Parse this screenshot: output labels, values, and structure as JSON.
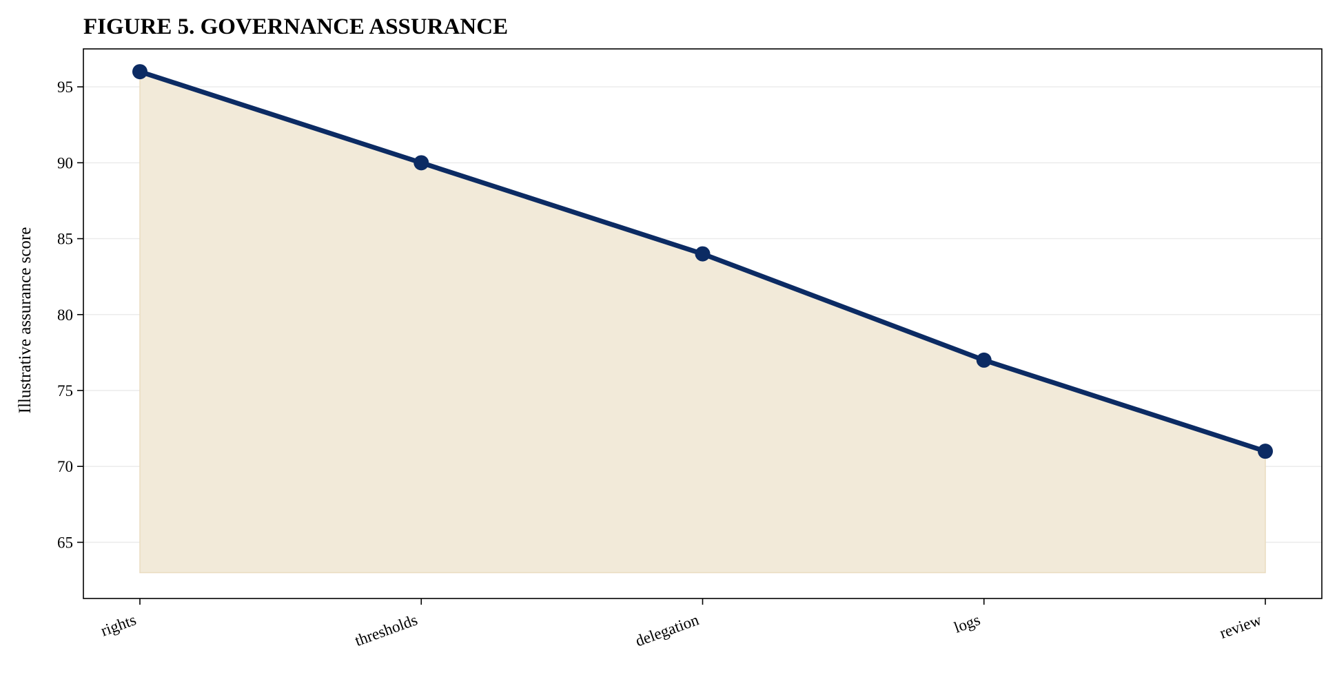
{
  "chart_data": {
    "type": "area",
    "title": "FIGURE 5. GOVERNANCE ASSURANCE",
    "xlabel": "",
    "ylabel": "Illustrative assurance score",
    "categories": [
      "rights",
      "thresholds",
      "delegation",
      "logs",
      "review"
    ],
    "series": [
      {
        "values": [
          96,
          90,
          84,
          77,
          71
        ]
      }
    ],
    "area_baseline": 63,
    "ylim": [
      61.3,
      97.5
    ],
    "yticks": [
      65,
      70,
      75,
      80,
      85,
      90,
      95
    ],
    "xtick_rotation": "slanted",
    "grid": "horizontal",
    "legend": "none",
    "colors": {
      "line": "#0c2b63",
      "marker": "#0c2b63",
      "fill": "#f2ead9",
      "fill_edge": "#eadcc0",
      "grid": "#ebebeb",
      "axis": "#000000"
    }
  }
}
